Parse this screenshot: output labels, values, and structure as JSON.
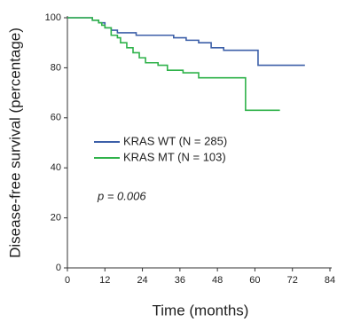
{
  "chart_data": {
    "type": "line",
    "step": true,
    "xlabel": "Time (months)",
    "ylabel": "Disease-free survival (percentage)",
    "annotation": "p = 0.006",
    "xlim": [
      0,
      84
    ],
    "xticks": [
      0,
      12,
      24,
      36,
      48,
      60,
      72,
      84
    ],
    "ylim": [
      0,
      100
    ],
    "yticks": [
      0,
      20,
      40,
      60,
      80,
      100
    ],
    "series": [
      {
        "name": "KRAS WT (N = 285)",
        "color": "#3c5fa8",
        "x": [
          0,
          8,
          10,
          12,
          14,
          16,
          18,
          22,
          26,
          30,
          34,
          38,
          42,
          46,
          50,
          60,
          61,
          76
        ],
        "values": [
          100,
          99,
          98,
          96,
          95,
          94,
          94,
          93,
          93,
          93,
          92,
          91,
          90,
          88,
          87,
          87,
          81,
          81
        ]
      },
      {
        "name": "KRAS MT (N = 103)",
        "color": "#2fb24a",
        "x": [
          0,
          8,
          10,
          11,
          12,
          14,
          16,
          17,
          19,
          21,
          23,
          25,
          29,
          32,
          37,
          42,
          56,
          57,
          68
        ],
        "values": [
          100,
          99,
          98,
          97,
          96,
          93,
          92,
          90,
          88,
          86,
          84,
          82,
          81,
          79,
          78,
          76,
          76,
          63,
          63
        ]
      }
    ]
  }
}
